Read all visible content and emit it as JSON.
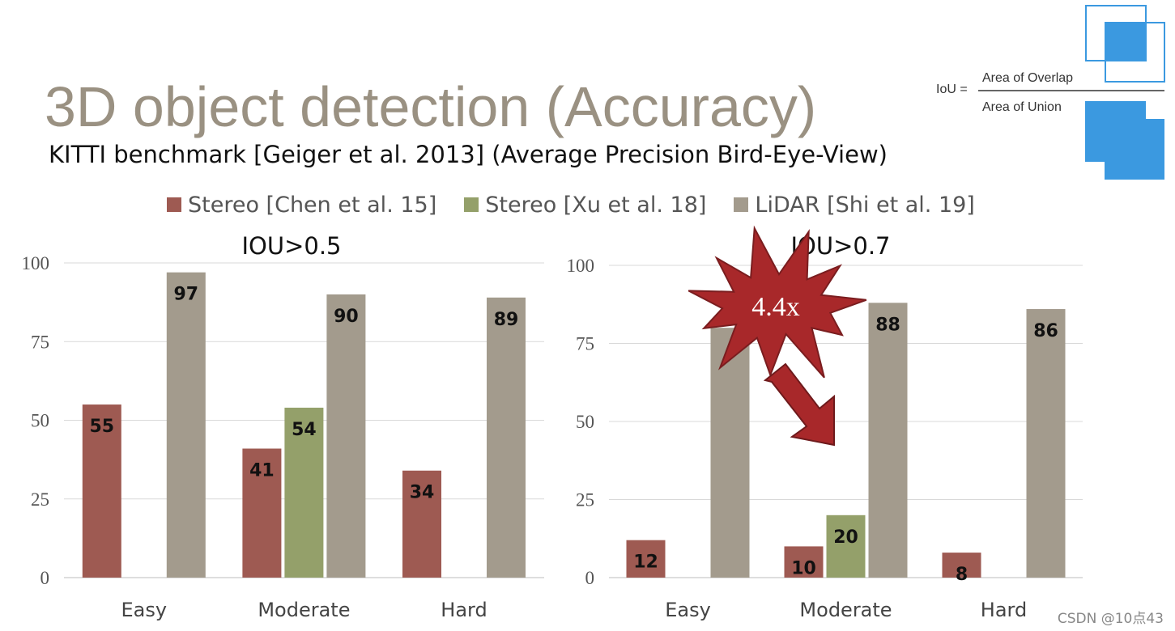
{
  "slide": {
    "title": "3D object detection (Accuracy)",
    "subtitle": "KITTI benchmark [Geiger et al. 2013] (Average Precision Bird-Eye-View)",
    "watermark": "CSDN @10点43"
  },
  "legend": [
    {
      "label": "Stereo [Chen et al. 15]",
      "color": "#9e5a52"
    },
    {
      "label": "Stereo [Xu et al. 18]",
      "color": "#94a06a"
    },
    {
      "label": "LiDAR [Shi et al. 19]",
      "color": "#a39b8d"
    }
  ],
  "iou_formula": {
    "lhs": "IoU =",
    "numerator": "Area of Overlap",
    "denominator": "Area of Union",
    "box_color": "#3b99e0"
  },
  "annotation": {
    "text": "4.4x",
    "burst_color": "#a8282a"
  },
  "chart_data": [
    {
      "type": "bar",
      "title": "IOU>0.5",
      "categories": [
        "Easy",
        "Moderate",
        "Hard"
      ],
      "series": [
        {
          "name": "Stereo [Chen et al. 15]",
          "values": [
            55,
            41,
            34
          ],
          "labels": [
            "55",
            "41",
            "34"
          ]
        },
        {
          "name": "Stereo [Xu et al. 18]",
          "values": [
            null,
            54,
            null
          ],
          "labels": [
            "",
            "54",
            ""
          ]
        },
        {
          "name": "LiDAR [Shi et al. 19]",
          "values": [
            97,
            90,
            89
          ],
          "labels": [
            "97",
            "90",
            "89"
          ]
        }
      ],
      "ylim": [
        0,
        100
      ],
      "yticks": [
        "0",
        "25",
        "50",
        "75",
        "100"
      ],
      "grid": true
    },
    {
      "type": "bar",
      "title": "IOU>0.7",
      "categories": [
        "Easy",
        "Moderate",
        "Hard"
      ],
      "series": [
        {
          "name": "Stereo [Chen et al. 15]",
          "values": [
            12,
            10,
            8
          ],
          "labels": [
            "12",
            "10",
            "8"
          ]
        },
        {
          "name": "Stereo [Xu et al. 18]",
          "values": [
            null,
            20,
            null
          ],
          "labels": [
            "",
            "20",
            ""
          ]
        },
        {
          "name": "LiDAR [Shi et al. 19]",
          "values": [
            80,
            88,
            86
          ],
          "labels": [
            "",
            "88",
            "86"
          ]
        }
      ],
      "ylim": [
        0,
        100
      ],
      "yticks": [
        "0",
        "25",
        "50",
        "75",
        "100"
      ],
      "grid": true
    }
  ]
}
